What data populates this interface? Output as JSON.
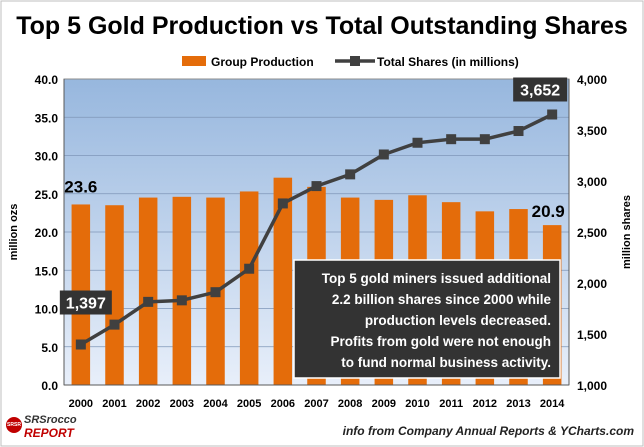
{
  "chart_data": {
    "type": "bar+line",
    "title": "Top 5 Gold Production vs Total Outstanding Shares",
    "categories": [
      "2000",
      "2001",
      "2002",
      "2003",
      "2004",
      "2005",
      "2006",
      "2007",
      "2008",
      "2009",
      "2010",
      "2011",
      "2012",
      "2013",
      "2014"
    ],
    "series": [
      {
        "name": "Group Production",
        "type": "bar",
        "axis": "left",
        "values": [
          23.6,
          23.5,
          24.5,
          24.6,
          24.5,
          25.3,
          27.1,
          25.9,
          24.5,
          24.2,
          24.8,
          23.9,
          22.7,
          23.0,
          20.9
        ],
        "color": "#e46c0a"
      },
      {
        "name": "Total Shares (in millions)",
        "type": "line",
        "axis": "right",
        "values": [
          1397,
          1592,
          1815,
          1830,
          1910,
          2140,
          2780,
          2950,
          3065,
          3260,
          3375,
          3410,
          3410,
          3490,
          3652
        ],
        "color": "#404040"
      }
    ],
    "left_axis": {
      "label": "million ozs",
      "range": [
        0,
        40
      ],
      "ticks": [
        "0.0",
        "5.0",
        "10.0",
        "15.0",
        "20.0",
        "25.0",
        "30.0",
        "35.0",
        "40.0"
      ]
    },
    "right_axis": {
      "label": "million shares",
      "range": [
        1000,
        4000
      ],
      "ticks": [
        "1,000",
        "1,500",
        "2,000",
        "2,500",
        "3,000",
        "3,500",
        "4,000"
      ]
    },
    "data_labels": {
      "bar_first": "23.6",
      "bar_last": "20.9",
      "line_first": "1,397",
      "line_last": "3,652"
    },
    "annotation": [
      "Top 5 gold miners issued additional",
      "2.2 billion shares since 2000 while",
      "production levels decreased.",
      "Profits from gold were not enough",
      "to fund normal business activity."
    ],
    "legend_position": "top"
  },
  "footer": {
    "brand_line1": "SRSrocco",
    "brand_line2": "REPORT",
    "source": "info from Company Annual Reports & YCharts.com"
  },
  "colors": {
    "plot_top": "#97b7de",
    "plot_bottom": "#e6eef9",
    "bar": "#e46c0a",
    "line": "#404040",
    "annotation_bg": "#333333"
  }
}
